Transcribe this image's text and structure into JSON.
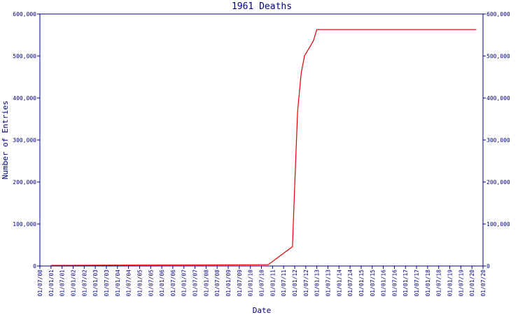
{
  "chart_data": {
    "type": "line",
    "title": "1961 Deaths",
    "xlabel": "Date",
    "ylabel": "Number of Entries",
    "color": "#e00000",
    "axis_color": "#000080",
    "x": [
      2001.0,
      2003.0,
      2005.0,
      2008.0,
      2010.8,
      2011.9,
      2012.0,
      2012.13,
      2012.29,
      2012.44,
      2012.7,
      2012.85,
      2013.0,
      2013.55,
      2020.2
    ],
    "values": [
      1500,
      1800,
      2200,
      2500,
      3000,
      46000,
      190000,
      367000,
      458000,
      500000,
      523000,
      537000,
      563000,
      563000,
      563000
    ],
    "xlim": [
      2000.5,
      2020.5
    ],
    "xticks": [
      {
        "value": 2000.5,
        "label": "01/07/00"
      },
      {
        "value": 2001.0,
        "label": "01/01/01"
      },
      {
        "value": 2001.5,
        "label": "01/07/01"
      },
      {
        "value": 2002.0,
        "label": "01/01/02"
      },
      {
        "value": 2002.5,
        "label": "01/07/02"
      },
      {
        "value": 2003.0,
        "label": "01/01/03"
      },
      {
        "value": 2003.5,
        "label": "01/07/03"
      },
      {
        "value": 2004.0,
        "label": "01/01/04"
      },
      {
        "value": 2004.5,
        "label": "01/07/04"
      },
      {
        "value": 2005.0,
        "label": "01/01/05"
      },
      {
        "value": 2005.5,
        "label": "01/07/05"
      },
      {
        "value": 2006.0,
        "label": "01/01/06"
      },
      {
        "value": 2006.5,
        "label": "01/07/06"
      },
      {
        "value": 2007.0,
        "label": "01/01/07"
      },
      {
        "value": 2007.5,
        "label": "01/07/07"
      },
      {
        "value": 2008.0,
        "label": "01/01/08"
      },
      {
        "value": 2008.5,
        "label": "01/07/08"
      },
      {
        "value": 2009.0,
        "label": "01/01/09"
      },
      {
        "value": 2009.5,
        "label": "01/07/09"
      },
      {
        "value": 2010.0,
        "label": "01/01/10"
      },
      {
        "value": 2010.5,
        "label": "01/07/10"
      },
      {
        "value": 2011.0,
        "label": "01/01/11"
      },
      {
        "value": 2011.5,
        "label": "01/07/11"
      },
      {
        "value": 2012.0,
        "label": "01/01/12"
      },
      {
        "value": 2012.5,
        "label": "01/07/12"
      },
      {
        "value": 2013.0,
        "label": "01/01/13"
      },
      {
        "value": 2013.5,
        "label": "01/07/13"
      },
      {
        "value": 2014.0,
        "label": "01/01/14"
      },
      {
        "value": 2014.5,
        "label": "01/07/14"
      },
      {
        "value": 2015.0,
        "label": "01/01/15"
      },
      {
        "value": 2015.5,
        "label": "01/07/15"
      },
      {
        "value": 2016.0,
        "label": "01/01/16"
      },
      {
        "value": 2016.5,
        "label": "01/07/16"
      },
      {
        "value": 2017.0,
        "label": "01/01/17"
      },
      {
        "value": 2017.5,
        "label": "01/07/17"
      },
      {
        "value": 2018.0,
        "label": "01/01/18"
      },
      {
        "value": 2018.5,
        "label": "01/07/18"
      },
      {
        "value": 2019.0,
        "label": "01/01/19"
      },
      {
        "value": 2019.5,
        "label": "01/07/19"
      },
      {
        "value": 2020.0,
        "label": "01/01/20"
      },
      {
        "value": 2020.5,
        "label": "01/07/20"
      }
    ],
    "ylim": [
      0,
      600000
    ],
    "yticks": [
      0,
      {
        "value": 100000,
        "label": "100,000"
      },
      {
        "value": 200000,
        "label": "200,000"
      },
      {
        "value": 300000,
        "label": "300,000"
      },
      {
        "value": 400000,
        "label": "400,000"
      },
      {
        "value": 500000,
        "label": "500,000"
      },
      {
        "value": 600000,
        "label": "600,000"
      }
    ]
  }
}
